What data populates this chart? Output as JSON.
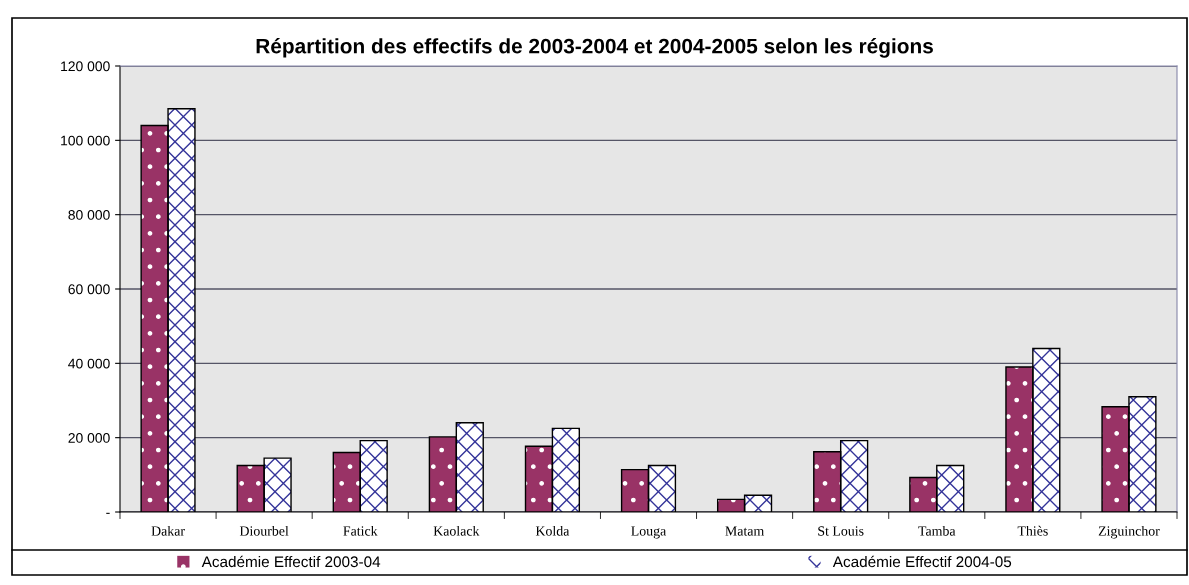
{
  "chart_data": {
    "type": "bar",
    "title": "Répartition des effectifs de 2003-2004 et 2004-2005 selon les régions",
    "categories": [
      "Dakar",
      "Diourbel",
      "Fatick",
      "Kaolack",
      "Kolda",
      "Louga",
      "Matam",
      "St Louis",
      "Tamba",
      "Thiès",
      "Ziguinchor"
    ],
    "series": [
      {
        "name": "Académie Effectif 2003-04",
        "color": "#993366",
        "values": [
          104000,
          12500,
          16000,
          20200,
          17700,
          11400,
          3400,
          16200,
          9300,
          39000,
          28300
        ]
      },
      {
        "name": "Académie Effectif 2004-05",
        "color": "#ffffff",
        "values": [
          108500,
          14500,
          19200,
          24000,
          22500,
          12500,
          4500,
          19200,
          12500,
          44000,
          31000
        ]
      }
    ],
    "ylim": [
      0,
      120000
    ],
    "yticks": [
      {
        "value": 0,
        "label": "-"
      },
      {
        "value": 20000,
        "label": "20 000"
      },
      {
        "value": 40000,
        "label": "40 000"
      },
      {
        "value": 60000,
        "label": "60 000"
      },
      {
        "value": 80000,
        "label": "80 000"
      },
      {
        "value": 100000,
        "label": "100 000"
      },
      {
        "value": 120000,
        "label": "120 000"
      }
    ],
    "grid": "y",
    "legend": "bottom"
  }
}
